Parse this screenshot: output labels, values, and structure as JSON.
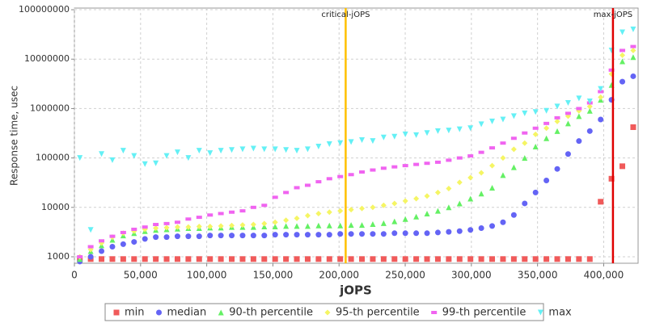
{
  "chart_data": {
    "type": "scatter",
    "x_label": "jOPS",
    "y_label": "Response time, usec",
    "log_y": true,
    "grid": true,
    "xlim": [
      0,
      426000
    ],
    "ylim": [
      740,
      108000000
    ],
    "xticks": [
      0,
      {
        "value": 50000,
        "label": "50,000"
      },
      {
        "value": 100000,
        "label": "100,000"
      },
      {
        "value": 150000,
        "label": "150,000"
      },
      {
        "value": 200000,
        "label": "200,000"
      },
      {
        "value": 250000,
        "label": "250,000"
      },
      {
        "value": 300000,
        "label": "300,000"
      },
      {
        "value": 350000,
        "label": "350,000"
      },
      {
        "value": 400000,
        "label": "400,000"
      }
    ],
    "yticks": [
      1000,
      10000,
      100000,
      1000000,
      10000000,
      100000000
    ],
    "x": [
      4100,
      12300,
      20500,
      28700,
      36900,
      45100,
      53300,
      61500,
      69700,
      77900,
      86100,
      94300,
      102500,
      110700,
      118900,
      127100,
      135300,
      143500,
      151700,
      159900,
      168100,
      176300,
      184500,
      192700,
      200900,
      209100,
      217300,
      225500,
      233700,
      241900,
      250100,
      258300,
      266500,
      274700,
      282900,
      291100,
      299300,
      307500,
      315700,
      323900,
      332100,
      340300,
      348500,
      356700,
      364900,
      373100,
      381300,
      389500,
      397700,
      405900,
      414100,
      422300
    ],
    "annotations": [
      {
        "label": "critical-jOPS",
        "x": 205000,
        "color": "#ffc000"
      },
      {
        "label": "max-jOPS",
        "x": 407000,
        "color": "#e00000"
      }
    ],
    "series": [
      {
        "name": "min",
        "color": "#f05a5a",
        "values": [
          900,
          900,
          900,
          900,
          900,
          900,
          900,
          900,
          900,
          900,
          900,
          900,
          900,
          900,
          900,
          900,
          900,
          900,
          900,
          900,
          900,
          900,
          900,
          900,
          900,
          900,
          900,
          900,
          900,
          900,
          900,
          900,
          900,
          900,
          900,
          900,
          900,
          900,
          900,
          900,
          900,
          900,
          900,
          900,
          900,
          900,
          900,
          900,
          13000,
          38000,
          68000,
          420000
        ]
      },
      {
        "name": "median",
        "color": "#6464f5",
        "values": [
          800,
          1000,
          1300,
          1600,
          1800,
          2000,
          2300,
          2500,
          2500,
          2600,
          2600,
          2600,
          2700,
          2700,
          2700,
          2700,
          2700,
          2700,
          2800,
          2800,
          2800,
          2800,
          2800,
          2800,
          2900,
          2900,
          2900,
          2900,
          2900,
          3000,
          3000,
          3000,
          3000,
          3100,
          3200,
          3300,
          3500,
          3800,
          4200,
          5000,
          7000,
          12000,
          20000,
          35000,
          60000,
          120000,
          220000,
          350000,
          600000,
          1500000,
          3500000,
          4500000
        ]
      },
      {
        "name": "90-th percentile",
        "color": "#64f064",
        "values": [
          900,
          1300,
          1700,
          2200,
          2700,
          3000,
          3300,
          3500,
          3600,
          3700,
          3800,
          3800,
          3900,
          3900,
          4000,
          4000,
          4000,
          4100,
          4100,
          4200,
          4200,
          4200,
          4300,
          4300,
          4300,
          4400,
          4400,
          4600,
          4800,
          5200,
          5800,
          6500,
          7500,
          8500,
          10000,
          12000,
          15000,
          19000,
          25000,
          45000,
          65000,
          100000,
          170000,
          250000,
          350000,
          500000,
          700000,
          900000,
          1500000,
          3000000,
          9000000,
          11000000
        ]
      },
      {
        "name": "95-th percentile",
        "color": "#f5f564",
        "values": [
          1000,
          1400,
          1900,
          2500,
          3000,
          3300,
          3600,
          3800,
          3900,
          4000,
          4000,
          4100,
          4100,
          4200,
          4300,
          4400,
          4500,
          4700,
          5000,
          5500,
          6000,
          6800,
          7500,
          8000,
          8500,
          9000,
          9500,
          10000,
          11000,
          12000,
          13500,
          15000,
          17000,
          20000,
          24000,
          32000,
          40000,
          50000,
          70000,
          100000,
          150000,
          200000,
          300000,
          400000,
          550000,
          700000,
          900000,
          1100000,
          1700000,
          5000000,
          12000000,
          15000000
        ]
      },
      {
        "name": "99-th percentile",
        "color": "#f064f0",
        "values": [
          1000,
          1600,
          2100,
          2600,
          3100,
          3600,
          4000,
          4500,
          4700,
          5000,
          5800,
          6300,
          7000,
          7500,
          8000,
          8500,
          10000,
          11000,
          16000,
          20000,
          25000,
          28000,
          33000,
          38000,
          42000,
          46000,
          52000,
          57000,
          62000,
          66000,
          70000,
          74000,
          78000,
          82000,
          90000,
          100000,
          110000,
          130000,
          160000,
          200000,
          250000,
          320000,
          400000,
          500000,
          650000,
          800000,
          1000000,
          1300000,
          2200000,
          6000000,
          15000000,
          18000000
        ]
      },
      {
        "name": "max",
        "color": "#64f0f5",
        "values": [
          100000,
          3500,
          120000,
          90000,
          140000,
          110000,
          75000,
          78000,
          110000,
          130000,
          100000,
          140000,
          125000,
          140000,
          145000,
          150000,
          155000,
          150000,
          150000,
          145000,
          140000,
          150000,
          170000,
          190000,
          200000,
          210000,
          230000,
          220000,
          260000,
          270000,
          300000,
          290000,
          320000,
          350000,
          360000,
          380000,
          400000,
          480000,
          550000,
          600000,
          700000,
          800000,
          850000,
          900000,
          1100000,
          1300000,
          1600000,
          1400000,
          2500000,
          15000000,
          35000000,
          40000000
        ]
      }
    ]
  }
}
